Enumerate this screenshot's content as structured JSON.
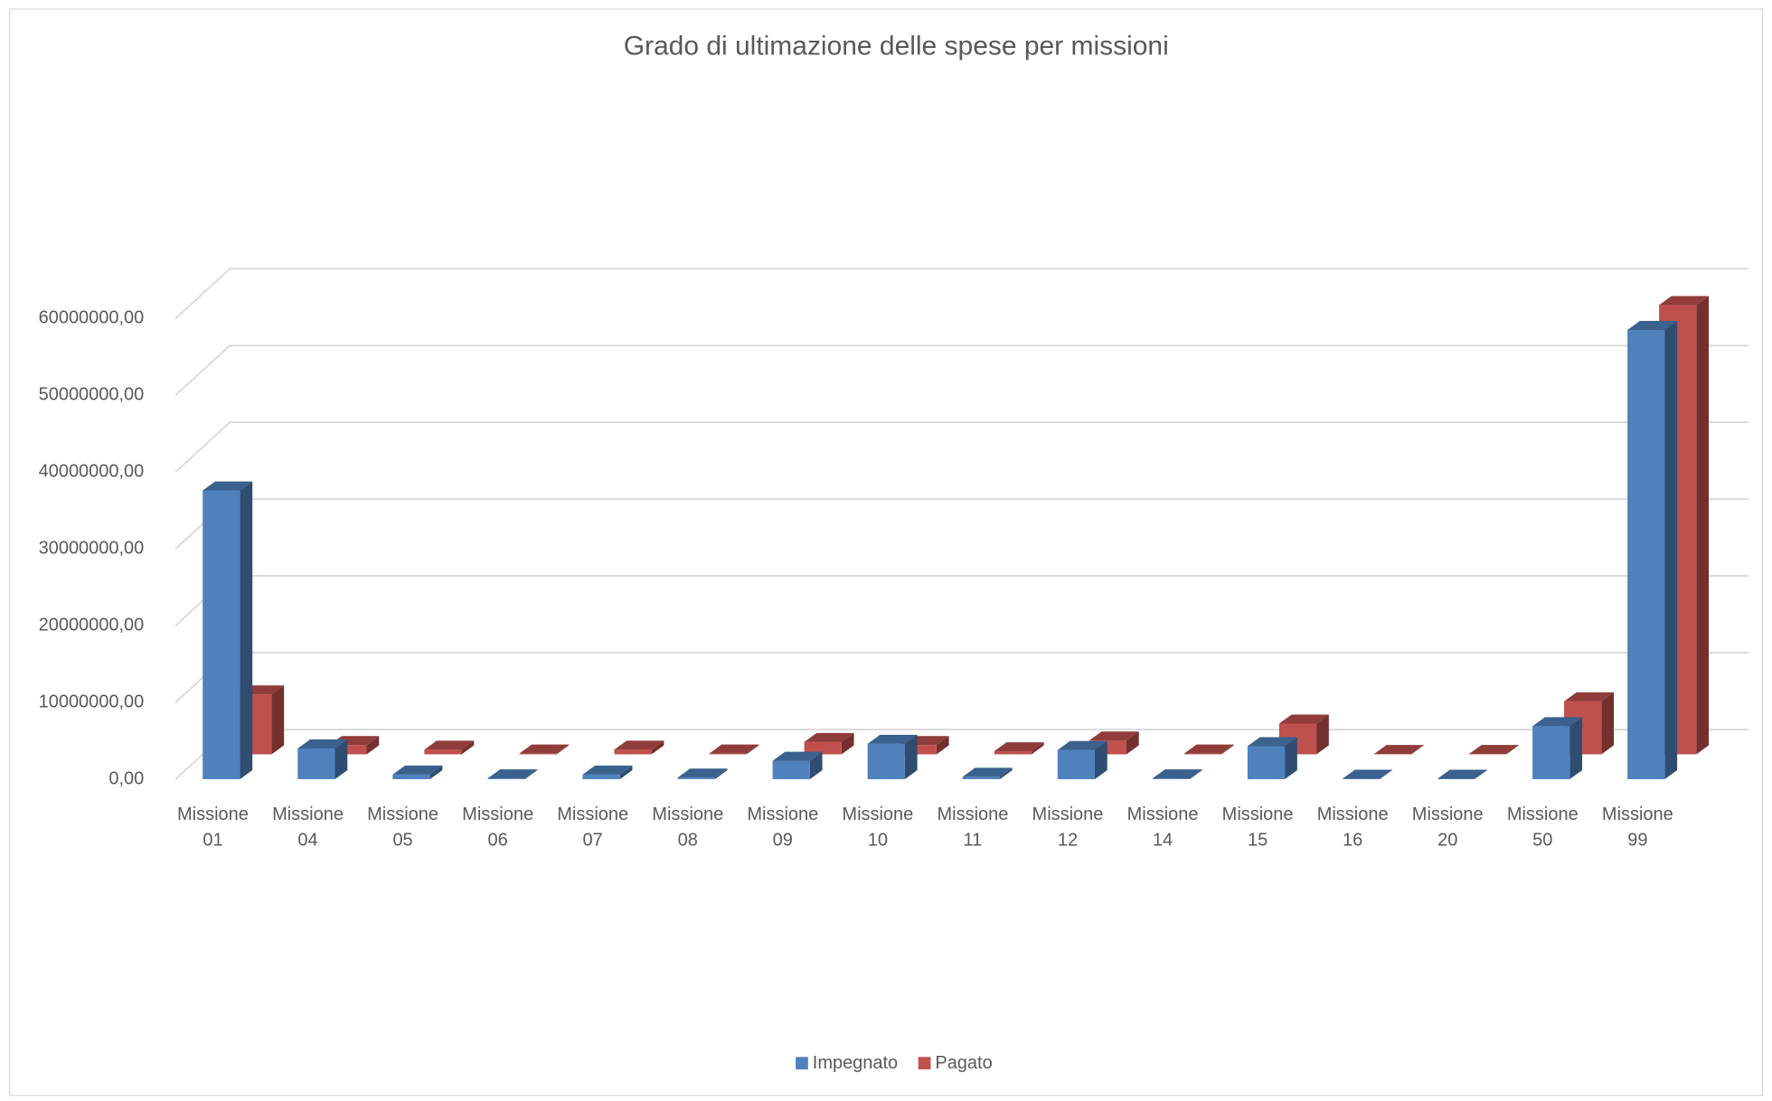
{
  "chart_data": {
    "type": "bar3d",
    "title": "Grado di ultimazione delle spese per missioni",
    "categories": [
      "Missione 01",
      "Missione 04",
      "Missione 05",
      "Missione 06",
      "Missione 07",
      "Missione 08",
      "Missione 09",
      "Missione 10",
      "Missione 11",
      "Missione 12",
      "Missione 14",
      "Missione 15",
      "Missione 16",
      "Missione 20",
      "Missione 50",
      "Missione 99"
    ],
    "series": [
      {
        "name": "Impegnato",
        "color": "#4f81bd",
        "values": [
          37600000,
          4000000,
          600000,
          100000,
          600000,
          200000,
          2400000,
          4600000,
          300000,
          3800000,
          100000,
          4300000,
          50000,
          50000,
          6900000,
          58500000
        ]
      },
      {
        "name": "Pagato",
        "color": "#c0504d",
        "values": [
          7800000,
          1200000,
          600000,
          100000,
          600000,
          100000,
          1600000,
          1200000,
          400000,
          1800000,
          100000,
          4000000,
          50000,
          50000,
          6900000,
          58500000
        ]
      }
    ],
    "ylim": [
      0,
      60000000
    ],
    "yticks": [
      {
        "value": 0,
        "label": "0,00"
      },
      {
        "value": 10000000,
        "label": "10000000,00"
      },
      {
        "value": 20000000,
        "label": "20000000,00"
      },
      {
        "value": 30000000,
        "label": "30000000,00"
      },
      {
        "value": 40000000,
        "label": "40000000,00"
      },
      {
        "value": 50000000,
        "label": "50000000,00"
      },
      {
        "value": 60000000,
        "label": "60000000,00"
      }
    ],
    "grid": true,
    "legend": "bottom"
  }
}
